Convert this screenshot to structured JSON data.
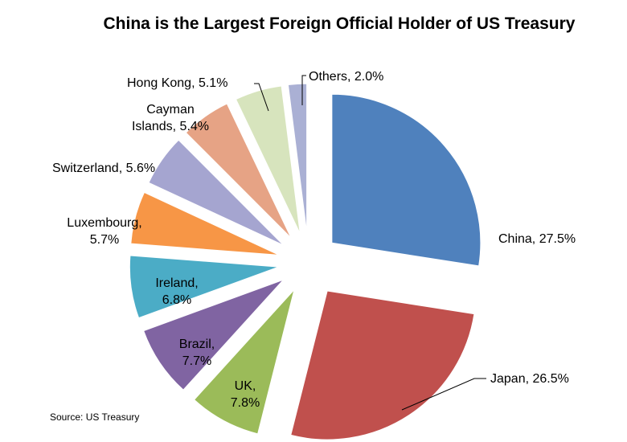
{
  "chart_data": {
    "type": "pie",
    "title": "China is the Largest Foreign Official Holder of US Treasury",
    "source": "Source: US Treasury",
    "slices": [
      {
        "name": "China",
        "label_lines": [
          "China, 27.5%"
        ],
        "value": 27.5,
        "color": "#4F81BD"
      },
      {
        "name": "Japan",
        "label_lines": [
          "Japan, 26.5%"
        ],
        "value": 26.5,
        "color": "#C0504D"
      },
      {
        "name": "UK",
        "label_lines": [
          "UK,",
          "7.8%"
        ],
        "value": 7.8,
        "color": "#9BBB59"
      },
      {
        "name": "Brazil",
        "label_lines": [
          "Brazil,",
          "7.7%"
        ],
        "value": 7.7,
        "color": "#8064A2"
      },
      {
        "name": "Ireland",
        "label_lines": [
          "Ireland,",
          "6.8%"
        ],
        "value": 6.8,
        "color": "#4BACC6"
      },
      {
        "name": "Luxembourg",
        "label_lines": [
          "Luxembourg,",
          "5.7%"
        ],
        "value": 5.7,
        "color": "#F79646"
      },
      {
        "name": "Switzerland",
        "label_lines": [
          "Switzerland, 5.6%"
        ],
        "value": 5.6,
        "color": "#A5A5D0"
      },
      {
        "name": "Cayman Islands",
        "label_lines": [
          "Cayman",
          "Islands, 5.4%"
        ],
        "value": 5.4,
        "color": "#E6A385"
      },
      {
        "name": "Hong Kong",
        "label_lines": [
          "Hong Kong, 5.1%"
        ],
        "value": 5.1,
        "color": "#D7E4BD"
      },
      {
        "name": "Others",
        "label_lines": [
          "Others, 2.0%"
        ],
        "value": 2.0,
        "color": "#AAB0D4"
      }
    ]
  }
}
